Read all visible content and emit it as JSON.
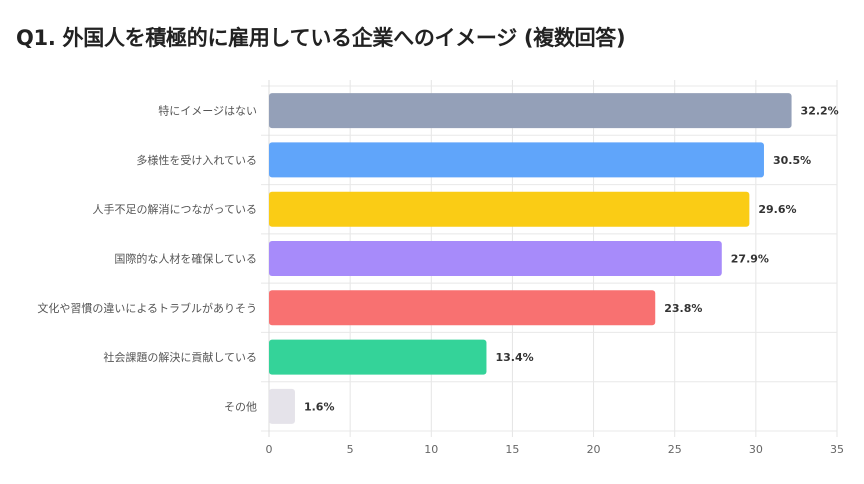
{
  "chart_data": {
    "type": "bar",
    "orientation": "horizontal",
    "title": "Q1. 外国人を積極的に雇用している企業へのイメージ (複数回答)",
    "categories": [
      "特にイメージはない",
      "多様性を受け入れている",
      "人手不足の解消につながっている",
      "国際的な人材を確保している",
      "文化や習慣の違いによるトラブルがありそう",
      "社会課題の解決に貢献している",
      "その他"
    ],
    "values": [
      32.2,
      30.5,
      29.6,
      27.9,
      23.8,
      13.4,
      1.6
    ],
    "value_labels": [
      "32.2%",
      "30.5%",
      "29.6%",
      "27.9%",
      "23.8%",
      "13.4%",
      "1.6%"
    ],
    "colors": [
      "#94a0b8",
      "#60a5fa",
      "#facc15",
      "#a78bfa",
      "#f87171",
      "#34d399",
      "#e5e3ea"
    ],
    "xlim": [
      0,
      35
    ],
    "xticks": [
      "0",
      "5",
      "10",
      "15",
      "20",
      "25",
      "30",
      "35"
    ],
    "xlabel": "",
    "ylabel": "",
    "grid": true,
    "legend": "none"
  }
}
